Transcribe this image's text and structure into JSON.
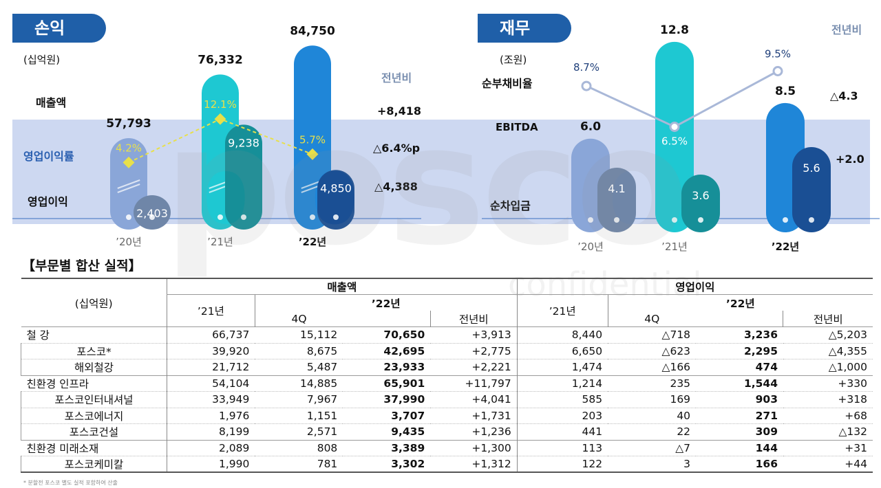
{
  "income": {
    "header": "손익",
    "unit": "(십억원)",
    "row_labels": {
      "sales": "매출액",
      "margin": "영업이익률",
      "op": "영업이익"
    },
    "yoy_header": "전년비",
    "yoy": {
      "sales": "+8,418",
      "margin": "△6.4%p",
      "op": "△4,388"
    },
    "years": [
      "’20년",
      "’21년",
      "’22년"
    ]
  },
  "finance": {
    "header": "재무",
    "unit": "(조원)",
    "row_labels": {
      "ratio": "순부채비율",
      "ebitda": "EBITDA",
      "net": "순차입금"
    },
    "yoy_header": "전년비",
    "yoy": {
      "ebitda": "△4.3",
      "net": "+2.0"
    },
    "years": [
      "’20년",
      "’21년",
      "’22년"
    ]
  },
  "chart_data": [
    {
      "type": "bar",
      "title": "손익",
      "ylabel": "(십억원)",
      "categories": [
        "’20년",
        "’21년",
        "’22년"
      ],
      "series": [
        {
          "name": "매출액",
          "values": [
            57793,
            76332,
            84750
          ],
          "labels": [
            "57,793",
            "76,332",
            "84,750"
          ]
        },
        {
          "name": "영업이익",
          "values": [
            2403,
            9238,
            4850
          ],
          "labels": [
            "2,403",
            "9,238",
            "4,850"
          ]
        },
        {
          "name": "영업이익률",
          "type": "line",
          "values": [
            4.2,
            12.1,
            5.7
          ],
          "labels": [
            "4.2%",
            "12.1%",
            "5.7%"
          ]
        }
      ],
      "colors": {
        "y20": "#8aa6d8",
        "y21": "#1ec8d2",
        "y22": "#1f86d8",
        "op20": "#6f86a8",
        "op21": "#168f98",
        "op22": "#1a4f94",
        "margin_line": "#e8e04a"
      }
    },
    {
      "type": "bar",
      "title": "재무",
      "ylabel": "(조원)",
      "categories": [
        "’20년",
        "’21년",
        "’22년"
      ],
      "series": [
        {
          "name": "EBITDA",
          "values": [
            6.0,
            12.8,
            8.5
          ],
          "labels": [
            "6.0",
            "12.8",
            "8.5"
          ]
        },
        {
          "name": "순차입금",
          "values": [
            4.1,
            3.6,
            5.6
          ],
          "labels": [
            "4.1",
            "3.6",
            "5.6"
          ]
        },
        {
          "name": "순부채비율",
          "type": "line",
          "values": [
            8.7,
            6.5,
            9.5
          ],
          "labels": [
            "8.7%",
            "6.5%",
            "9.5%"
          ]
        }
      ],
      "colors": {
        "y20": "#8aa6d8",
        "y21": "#1ec8d2",
        "y22": "#1f86d8",
        "net20": "#6f86a8",
        "net21": "#168f98",
        "net22": "#1a4f94",
        "ratio_line": "#a9b8d8"
      }
    }
  ],
  "segment": {
    "title": "【부문별 합산 실적】",
    "unit": "(십억원)",
    "group_sales": "매출액",
    "group_op": "영업이익",
    "col_21": "’21년",
    "col_22": "’22년",
    "col_4q": "4Q",
    "col_yoy": "전년비",
    "rows": [
      {
        "type": "group",
        "name": "철 강",
        "v": [
          "66,737",
          "15,112",
          "70,650",
          "+3,913",
          "8,440",
          "△718",
          "3,236",
          "△5,203"
        ]
      },
      {
        "type": "sub",
        "name": "포스코*",
        "v": [
          "39,920",
          "8,675",
          "42,695",
          "+2,775",
          "6,650",
          "△623",
          "2,295",
          "△4,355"
        ]
      },
      {
        "type": "sub",
        "name": "해외철강",
        "v": [
          "21,712",
          "5,487",
          "23,933",
          "+2,221",
          "1,474",
          "△166",
          "474",
          "△1,000"
        ]
      },
      {
        "type": "group",
        "name": "친환경 인프라",
        "v": [
          "54,104",
          "14,885",
          "65,901",
          "+11,797",
          "1,214",
          "235",
          "1,544",
          "+330"
        ]
      },
      {
        "type": "sub",
        "name": "포스코인터내셔널",
        "v": [
          "33,949",
          "7,967",
          "37,990",
          "+4,041",
          "585",
          "169",
          "903",
          "+318"
        ]
      },
      {
        "type": "sub",
        "name": "포스코에너지",
        "v": [
          "1,976",
          "1,151",
          "3,707",
          "+1,731",
          "203",
          "40",
          "271",
          "+68"
        ]
      },
      {
        "type": "sub",
        "name": "포스코건설",
        "v": [
          "8,199",
          "2,571",
          "9,435",
          "+1,236",
          "441",
          "22",
          "309",
          "△132"
        ]
      },
      {
        "type": "group",
        "name": "친환경 미래소재",
        "v": [
          "2,089",
          "808",
          "3,389",
          "+1,300",
          "113",
          "△7",
          "144",
          "+31"
        ]
      },
      {
        "type": "sub",
        "name": "포스코케미칼",
        "v": [
          "1,990",
          "781",
          "3,302",
          "+1,312",
          "122",
          "3",
          "166",
          "+44"
        ]
      }
    ],
    "footnote": "* 분할전 포스코 별도 실적 포함하여 산출"
  },
  "watermark": {
    "logo": "posco",
    "sub": "confidential"
  }
}
